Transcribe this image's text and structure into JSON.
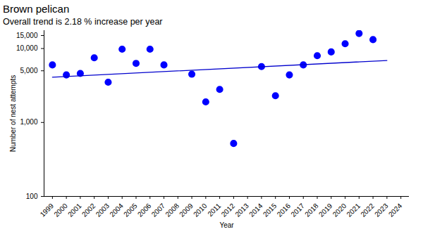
{
  "chart_data": {
    "type": "scatter",
    "title": "Brown pelican",
    "subtitle": "Overall trend is 2.18 % increase per year",
    "x_label": "Year",
    "y_label": "Number of nest attempts",
    "log": "y",
    "grid": false,
    "xlim": [
      1998.4,
      2024.6
    ],
    "xticks": [
      1999,
      2000,
      2001,
      2002,
      2003,
      2004,
      2005,
      2006,
      2007,
      2008,
      2009,
      2010,
      2011,
      2012,
      2013,
      2014,
      2015,
      2016,
      2017,
      2018,
      2019,
      2020,
      2021,
      2022,
      2023,
      2024
    ],
    "ylim": [
      100,
      17500
    ],
    "yticks": [
      100,
      {
        "value": 1000,
        "label": "1,000"
      },
      {
        "value": 5000,
        "label": "5,000"
      },
      {
        "value": 10000,
        "label": "10,000"
      },
      {
        "value": 15000,
        "label": "15,000"
      }
    ],
    "series": [
      {
        "type": "scatter",
        "marker": "circle",
        "color": "#0000ff",
        "x": [
          1999,
          2000,
          2001,
          2002,
          2003,
          2004,
          2005,
          2006,
          2007,
          2009,
          2010,
          2011,
          2012,
          2014,
          2015,
          2016,
          2017,
          2018,
          2019,
          2020,
          2021,
          2022
        ],
        "values": [
          6000,
          4400,
          4600,
          7500,
          3500,
          9800,
          6300,
          9800,
          6000,
          4500,
          1900,
          2800,
          520,
          5700,
          2300,
          4400,
          6000,
          8000,
          9000,
          11600,
          16000,
          13200
        ]
      },
      {
        "type": "line",
        "line_style": "solid",
        "color": "#0000cd",
        "x": [
          1999,
          2023
        ],
        "values": [
          4100,
          6900
        ]
      }
    ]
  }
}
